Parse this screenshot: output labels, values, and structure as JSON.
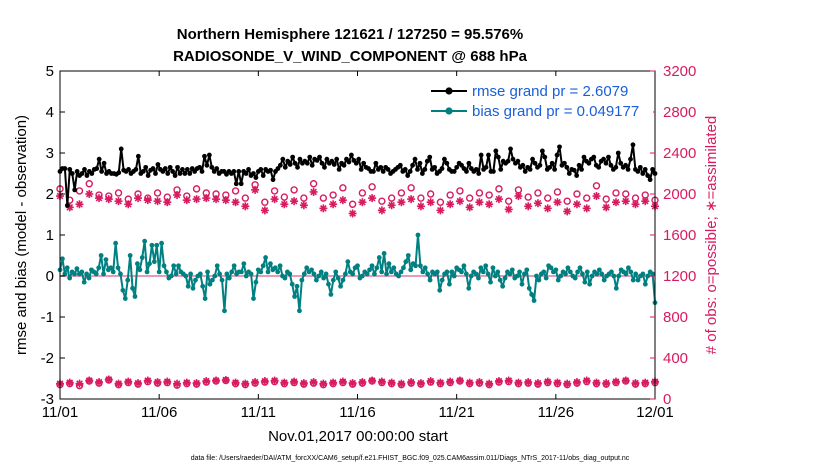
{
  "chart_data": {
    "type": "line",
    "title": "Northern Hemisphere 121621 / 127250 = 95.576%",
    "subtitle": "RADIOSONDE_V_WIND_COMPONENT @ 688 hPa",
    "xlabel": "Nov.01,2017 00:00:00 start",
    "ylabel_left": "rmse and bias (model - observation)",
    "ylabel_right": "# of obs: o=possible; ∗=assimilated",
    "footnote": "data file: /Users/raeder/DAI/ATM_forcXX/CAM6_setup/f.e21.FHIST_BGC.f09_025.CAM6assim.011/Diags_NTrS_2017-11/obs_diag_output.nc",
    "xlim": [
      0,
      30
    ],
    "ylim_left": [
      -3,
      5
    ],
    "ylim_right": [
      0,
      3200
    ],
    "x_ticks": [
      0,
      5,
      10,
      15,
      20,
      25,
      30
    ],
    "x_tick_labels": [
      "11/01",
      "11/06",
      "11/11",
      "11/16",
      "11/21",
      "11/26",
      "12/01"
    ],
    "y_ticks_left": [
      "-3",
      "-2",
      "-1",
      "0",
      "1",
      "2",
      "3",
      "4",
      "5"
    ],
    "y_ticks_right": [
      "0",
      "400",
      "800",
      "1200",
      "1600",
      "2000",
      "2400",
      "2800",
      "3200"
    ],
    "legend_position": "top-right",
    "colors": {
      "rmse": "#000000",
      "bias": "#008080",
      "obs": "#d81b60",
      "legend_text": "#1a5fd8",
      "zero_line": "#e89ab8"
    },
    "series": [
      {
        "name": "rmse grand pr = 2.6079",
        "marker": "filled-circle",
        "values": [
          2.55,
          2.62,
          2.62,
          1.72,
          2.6,
          2.5,
          2.1,
          2.55,
          2.45,
          2.5,
          2.6,
          2.45,
          2.55,
          2.5,
          2.6,
          2.62,
          2.85,
          2.55,
          2.75,
          2.5,
          2.55,
          2.5,
          2.5,
          2.48,
          2.52,
          3.1,
          2.58,
          2.55,
          2.6,
          2.5,
          2.55,
          2.6,
          2.92,
          2.5,
          2.55,
          2.65,
          2.45,
          2.58,
          2.62,
          2.5,
          2.72,
          2.6,
          2.55,
          2.62,
          2.5,
          2.65,
          2.55,
          2.45,
          2.65,
          2.5,
          2.6,
          2.5,
          2.6,
          2.5,
          2.62,
          2.55,
          2.62,
          2.65,
          2.55,
          2.92,
          2.7,
          2.95,
          2.65,
          2.55,
          2.62,
          2.5,
          2.55,
          2.55,
          2.48,
          2.55,
          2.5,
          2.55,
          2.25,
          2.55,
          2.25,
          2.55,
          2.5,
          2.6,
          2.45,
          2.5,
          2.4,
          2.55,
          2.6,
          2.45,
          2.6,
          2.55,
          2.58,
          2.35,
          2.55,
          2.62,
          2.7,
          2.85,
          2.65,
          2.8,
          2.72,
          2.9,
          2.75,
          2.65,
          2.85,
          2.75,
          2.8,
          2.75,
          2.9,
          2.7,
          2.85,
          2.82,
          2.9,
          2.75,
          2.65,
          2.85,
          2.75,
          2.8,
          2.72,
          2.85,
          2.6,
          2.75,
          2.7,
          2.85,
          2.78,
          2.95,
          2.82,
          2.75,
          2.85,
          2.6,
          2.75,
          2.65,
          2.62,
          2.55,
          2.55,
          2.75,
          2.6,
          2.65,
          2.55,
          2.65,
          2.6,
          2.5,
          2.55,
          2.6,
          2.65,
          2.7,
          2.55,
          2.6,
          2.45,
          2.55,
          2.7,
          2.85,
          2.6,
          2.75,
          2.5,
          2.6,
          2.8,
          2.9,
          2.6,
          2.65,
          2.5,
          2.55,
          2.62,
          2.85,
          2.75,
          2.6,
          2.55,
          2.55,
          2.65,
          2.75,
          2.7,
          2.62,
          2.55,
          2.75,
          2.62,
          2.55,
          2.6,
          2.5,
          2.95,
          2.6,
          2.65,
          2.95,
          2.55,
          2.55,
          3.05,
          2.9,
          2.6,
          2.8,
          2.75,
          2.8,
          3.1,
          2.85,
          2.75,
          2.8,
          2.65,
          2.7,
          2.55,
          2.65,
          2.6,
          2.85,
          2.75,
          2.65,
          2.7,
          3.05,
          2.9,
          2.6,
          2.65,
          2.75,
          2.6,
          2.95,
          3.15,
          2.7,
          2.75,
          2.65,
          2.5,
          2.6,
          2.58,
          2.45,
          2.7,
          2.6,
          2.9,
          2.8,
          2.75,
          2.85,
          2.9,
          2.7,
          2.65,
          2.8,
          2.85,
          2.75,
          2.9,
          2.7,
          2.6,
          2.65,
          3.0,
          2.75,
          2.65,
          2.7,
          2.6,
          2.85,
          3.2,
          2.6,
          2.55,
          2.65,
          2.5,
          2.6,
          2.45,
          2.35,
          2.6,
          2.5
        ]
      },
      {
        "name": "bias grand pr = 0.049177",
        "marker": "filled-circle",
        "values": [
          0.15,
          0.42,
          0.05,
          0.2,
          -0.05,
          0.1,
          0.05,
          0.18,
          0.05,
          0.1,
          -0.15,
          0.05,
          -0.05,
          0.15,
          0.1,
          0.05,
          0.2,
          0.5,
          0.05,
          0.4,
          0.15,
          0.2,
          0.1,
          0.8,
          0.2,
          0.05,
          -0.35,
          -0.55,
          -0.1,
          0.5,
          -0.3,
          -0.5,
          0.3,
          0.15,
          0.45,
          0.85,
          0.1,
          0.3,
          0.75,
          0.35,
          0.75,
          0.1,
          0.8,
          0.25,
          0.1,
          -0.05,
          0.0,
          0.25,
          0.05,
          0.25,
          0.1,
          0.05,
          0.0,
          -0.25,
          0.05,
          -0.3,
          -0.1,
          0.0,
          0.05,
          -0.25,
          -0.55,
          0.1,
          -0.2,
          -0.1,
          0.0,
          0.25,
          0.05,
          -0.1,
          -0.85,
          0.05,
          -0.05,
          0.1,
          0.25,
          0.05,
          0.1,
          0.1,
          0.3,
          0.0,
          0.1,
          0.05,
          -0.55,
          -0.15,
          0.15,
          0.1,
          0.25,
          0.45,
          0.1,
          0.3,
          0.15,
          0.2,
          0.1,
          0.25,
          0.0,
          -0.05,
          0.1,
          0.05,
          -0.2,
          -0.5,
          -0.25,
          -0.85,
          -0.1,
          0.05,
          0.2,
          0.1,
          0.15,
          0.05,
          -0.1,
          0.0,
          0.1,
          -0.05,
          0.05,
          -0.2,
          -0.45,
          -0.1,
          0.1,
          -0.05,
          -0.25,
          -0.1,
          0.05,
          0.35,
          0.1,
          0.05,
          0.2,
          0.25,
          -0.05,
          0.0,
          0.1,
          0.05,
          0.15,
          0.25,
          0.05,
          0.2,
          0.45,
          0.1,
          0.55,
          0.05,
          0.3,
          0.1,
          0.2,
          0.05,
          0.0,
          0.1,
          0.2,
          0.35,
          0.5,
          0.15,
          0.3,
          0.25,
          1.0,
          0.25,
          0.1,
          0.2,
          0.05,
          -0.1,
          0.1,
          0.05,
          0.1,
          -0.35,
          -0.1,
          0.05,
          0.1,
          -0.2,
          0.1,
          0.0,
          0.2,
          0.15,
          0.1,
          0.25,
          0.05,
          -0.3,
          0.0,
          0.1,
          0.05,
          -0.05,
          0.2,
          0.1,
          0.25,
          0.05,
          -0.15,
          0.2,
          0.0,
          0.1,
          -0.1,
          -0.25,
          -0.05,
          0.1,
          0.05,
          0.15,
          -0.05,
          0.0,
          0.1,
          -0.2,
          0.05,
          0.15,
          -0.3,
          -0.45,
          -0.6,
          0.0,
          -0.1,
          0.05,
          0.1,
          -0.05,
          0.25,
          0.2,
          0.1,
          0.15,
          -0.1,
          0.0,
          0.1,
          0.05,
          0.2,
          0.1,
          0.0,
          -0.05,
          0.1,
          0.2,
          0.05,
          -0.15,
          0.1,
          -0.2,
          0.0,
          0.1,
          0.05,
          0.15,
          0.05,
          -0.1,
          0.0,
          0.05,
          0.1,
          0.0,
          -0.3,
          0.0,
          0.15,
          0.1,
          0.05,
          0.2,
          0.1,
          -0.1,
          0.05,
          -0.1,
          0.0,
          0.05,
          -0.2,
          0.0,
          0.1,
          0.05,
          -0.65
        ]
      }
    ],
    "obs_series": [
      {
        "name": "possible",
        "marker": "open-circle",
        "groups": [
          {
            "values": [
              2050,
              1940,
              2030,
              2100,
              1990,
              1980,
              2010,
              1950,
              2000,
              1960,
              2010,
              1970,
              2040,
              1980,
              2050,
              2010,
              2000,
              1990,
              2030,
              1960,
              2090,
              1920,
              2030,
              1970,
              2040,
              1960,
              2100,
              1960,
              1990,
              2060,
              1900,
              2010,
              2070,
              1930,
              1960,
              2010,
              2060,
              1960,
              2000,
              1920,
              1990,
              2030,
              1960,
              2010,
              1990,
              2050,
              1930,
              2040,
              1970,
              2010,
              1960,
              2020,
              1930,
              2000,
              1960,
              2080,
              1950,
              2010,
              2000,
              1960,
              1990,
              1940
            ]
          },
          {
            "values": [
              140,
              150,
              130,
              175,
              155,
              185,
              140,
              160,
              145,
              170,
              155,
              160,
              135,
              150,
              145,
              165,
              175,
              180,
              150,
              140,
              155,
              165,
              170,
              150,
              160,
              145,
              155,
              140,
              150,
              160,
              145,
              155,
              175,
              160,
              150,
              140,
              155,
              145,
              165,
              150,
              160,
              175,
              150,
              155,
              140,
              165,
              170,
              150,
              155,
              145,
              160,
              150,
              140,
              155,
              170,
              150,
              145,
              160,
              175,
              145,
              150,
              160
            ]
          }
        ]
      },
      {
        "name": "assimilated",
        "marker": "asterisk",
        "groups": [
          {
            "values": [
              1980,
              1870,
              1900,
              2000,
              1960,
              1950,
              1930,
              1900,
              1960,
              1940,
              1930,
              1920,
              1990,
              1940,
              1950,
              1960,
              1950,
              1940,
              1920,
              1880,
              2040,
              1840,
              1950,
              1900,
              1930,
              1890,
              2020,
              1860,
              1900,
              1940,
              1810,
              1920,
              1960,
              1840,
              1890,
              1920,
              1950,
              1880,
              1920,
              1840,
              1900,
              1930,
              1870,
              1920,
              1900,
              1950,
              1850,
              1980,
              1880,
              1910,
              1860,
              1920,
              1830,
              1900,
              1860,
              1980,
              1870,
              1920,
              1930,
              1900,
              1930,
              1880
            ]
          },
          {
            "values": [
              150,
              160,
              150,
              180,
              165,
              190,
              150,
              170,
              155,
              180,
              165,
              170,
              150,
              160,
              155,
              175,
              180,
              185,
              160,
              150,
              165,
              175,
              180,
              160,
              170,
              155,
              165,
              150,
              160,
              170,
              155,
              165,
              180,
              170,
              160,
              150,
              165,
              155,
              175,
              160,
              170,
              180,
              160,
              165,
              150,
              175,
              180,
              160,
              165,
              155,
              170,
              160,
              150,
              165,
              180,
              160,
              155,
              170,
              180,
              155,
              160,
              170
            ]
          }
        ]
      }
    ]
  }
}
